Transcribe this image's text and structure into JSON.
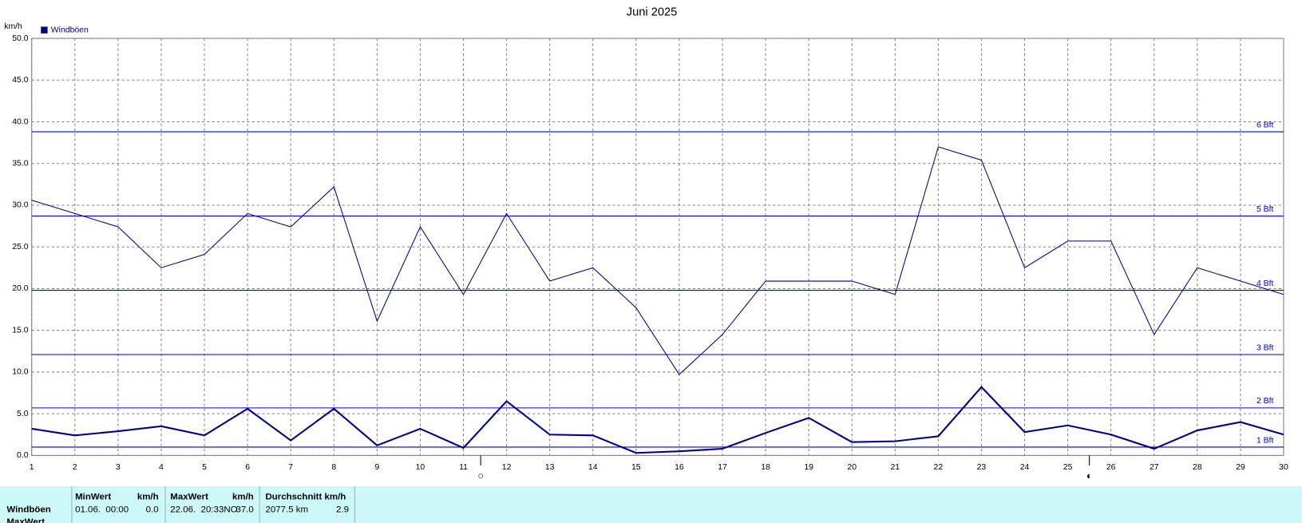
{
  "chart_data": {
    "type": "line",
    "title": "Juni 2025",
    "y_label": "km/h",
    "x": [
      1,
      2,
      3,
      4,
      5,
      6,
      7,
      8,
      9,
      10,
      11,
      12,
      13,
      14,
      15,
      16,
      17,
      18,
      19,
      20,
      21,
      22,
      23,
      24,
      25,
      26,
      27,
      28,
      29,
      30
    ],
    "xlim": [
      1,
      30
    ],
    "xticks": [
      1,
      2,
      3,
      4,
      5,
      6,
      7,
      8,
      9,
      10,
      11,
      12,
      13,
      14,
      15,
      16,
      17,
      18,
      19,
      20,
      21,
      22,
      23,
      24,
      25,
      26,
      27,
      28,
      29,
      30
    ],
    "ylim": [
      0,
      50
    ],
    "yticks": [
      {
        "value": 0,
        "label": "0.0"
      },
      {
        "value": 5,
        "label": "5.0"
      },
      {
        "value": 10,
        "label": "10.0"
      },
      {
        "value": 15,
        "label": "15.0"
      },
      {
        "value": 20,
        "label": "20.0"
      },
      {
        "value": 25,
        "label": "25.0"
      },
      {
        "value": 30,
        "label": "30.0"
      },
      {
        "value": 35,
        "label": "35.0"
      },
      {
        "value": 40,
        "label": "40.0"
      },
      {
        "value": 45,
        "label": "45.0"
      },
      {
        "value": 50,
        "label": "50.0"
      }
    ],
    "grid": true,
    "legend": "top-left",
    "series": [
      {
        "name": "Windböen",
        "color": "#000080",
        "width": 1,
        "values": [
          30.6,
          29.0,
          27.4,
          22.5,
          24.1,
          29.0,
          27.4,
          32.2,
          16.1,
          27.4,
          19.3,
          29.0,
          20.9,
          22.5,
          17.7,
          9.7,
          14.5,
          20.9,
          20.9,
          20.9,
          19.3,
          37.0,
          35.4,
          22.5,
          25.7,
          25.7,
          14.5,
          22.5,
          20.9,
          19.3
        ]
      },
      {
        "color": "#000080",
        "width": 2,
        "values": [
          3.2,
          2.4,
          2.9,
          3.5,
          2.4,
          5.6,
          1.8,
          5.6,
          1.2,
          3.2,
          0.9,
          6.5,
          2.5,
          2.4,
          0.3,
          0.5,
          0.8,
          2.7,
          4.5,
          1.6,
          1.7,
          2.3,
          8.2,
          2.8,
          3.6,
          2.5,
          0.8,
          3.0,
          4.0,
          2.5
        ]
      }
    ],
    "reference_lines": [
      {
        "value": 1.0,
        "label": "1 Bft"
      },
      {
        "value": 5.7,
        "label": "2 Bft"
      },
      {
        "value": 12.1,
        "label": "3 Bft"
      },
      {
        "value": 19.8,
        "label": "4 Bft"
      },
      {
        "value": 28.7,
        "label": "5 Bft"
      },
      {
        "value": 38.8,
        "label": "6 Bft"
      }
    ],
    "reference_color": "#0000cc",
    "moon_markers": [
      {
        "x": 11.4,
        "symbol": "○"
      },
      {
        "x": 25.5,
        "symbol": "◐"
      }
    ]
  },
  "table": {
    "header": [
      "MinWert",
      "km/h",
      "MaxWert",
      "km/h",
      "Durchschnitt km/h"
    ],
    "rows": [
      [
        "Windböen",
        "01.06.  00:00",
        "0.0",
        "22.06.  20:33NO",
        "37.0",
        "2077.5 km",
        "2.9"
      ],
      [
        "MaxWert"
      ]
    ]
  }
}
